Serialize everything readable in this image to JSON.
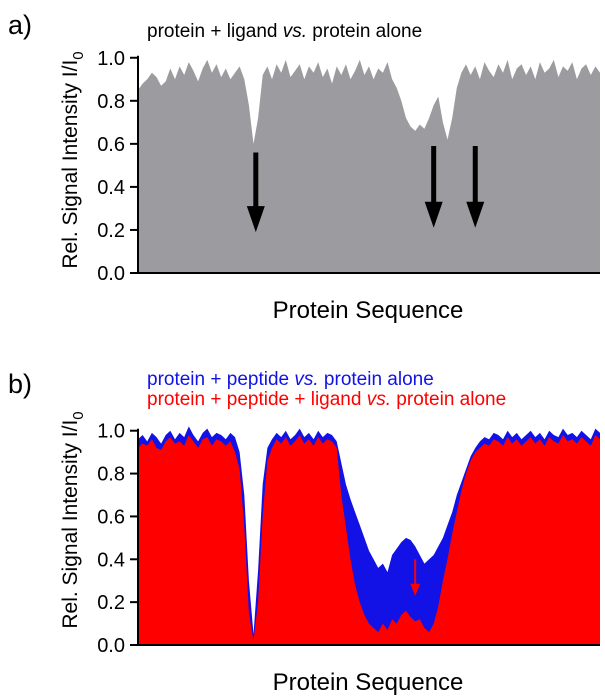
{
  "figure": {
    "panels": [
      "a)",
      "b)"
    ]
  },
  "chart_data": [
    {
      "type": "area",
      "panel_label": "a)",
      "title": "protein + ligand vs. protein alone",
      "title_parts": [
        {
          "text": "protein + ligand ",
          "style": "normal"
        },
        {
          "text": "vs.",
          "style": "italic"
        },
        {
          "text": " protein alone",
          "style": "normal"
        }
      ],
      "xlabel": "Protein Sequence",
      "ylabel": "Rel. Signal Intensity I/I",
      "ylabel_subscript": "0",
      "ylim": [
        0,
        1.05
      ],
      "yticks": [
        0.0,
        0.2,
        0.4,
        0.6,
        0.8,
        1.0
      ],
      "ytick_labels": [
        "0.0",
        "0.2",
        "0.4",
        "0.6",
        "0.8",
        "1.0"
      ],
      "x": [
        0,
        1,
        2,
        3,
        4,
        5,
        6,
        7,
        8,
        9,
        10,
        11,
        12,
        13,
        14,
        15,
        16,
        17,
        18,
        19,
        20,
        21,
        22,
        23,
        24,
        25,
        26,
        27,
        28,
        29,
        30,
        31,
        32,
        33,
        34,
        35,
        36,
        37,
        38,
        39,
        40,
        41,
        42,
        43,
        44,
        45,
        46,
        47,
        48,
        49,
        50,
        51,
        52,
        53,
        54,
        55,
        56,
        57,
        58,
        59,
        60,
        61,
        62,
        63,
        64,
        65,
        66,
        67,
        68,
        69,
        70,
        71,
        72,
        73,
        74,
        75,
        76,
        77,
        78,
        79,
        80,
        81,
        82,
        83,
        84,
        85,
        86,
        87,
        88,
        89,
        90,
        91,
        92,
        93,
        94,
        95,
        96,
        97,
        98,
        99,
        100
      ],
      "series": [
        {
          "name": "protein + ligand vs. protein alone",
          "color": "#9c9ca0",
          "values": [
            0.85,
            0.88,
            0.9,
            0.93,
            0.91,
            0.87,
            0.89,
            0.95,
            0.9,
            0.96,
            0.92,
            0.98,
            0.94,
            0.89,
            0.95,
            0.99,
            0.93,
            0.97,
            0.91,
            0.95,
            0.9,
            0.93,
            0.96,
            0.9,
            0.78,
            0.6,
            0.72,
            0.92,
            0.96,
            0.9,
            0.97,
            0.93,
            0.99,
            0.91,
            0.94,
            0.97,
            0.9,
            0.96,
            0.93,
            0.98,
            0.91,
            0.95,
            0.88,
            0.96,
            0.92,
            0.97,
            0.9,
            0.94,
            0.99,
            0.92,
            0.96,
            0.9,
            0.95,
            0.93,
            0.98,
            0.9,
            0.86,
            0.8,
            0.72,
            0.68,
            0.66,
            0.69,
            0.67,
            0.72,
            0.78,
            0.82,
            0.7,
            0.62,
            0.72,
            0.86,
            0.93,
            0.97,
            0.92,
            0.96,
            0.9,
            0.98,
            0.94,
            0.91,
            0.97,
            0.93,
            0.99,
            0.9,
            0.95,
            0.97,
            0.92,
            0.96,
            0.9,
            0.98,
            0.93,
            0.95,
            0.99,
            0.91,
            0.96,
            0.94,
            0.98,
            0.9,
            0.95,
            0.97,
            0.92,
            0.96,
            0.93
          ]
        }
      ],
      "annotations": [
        {
          "type": "arrow",
          "x": 25.5,
          "y_from": 0.56,
          "y_to": 0.19,
          "color": "#000000"
        },
        {
          "type": "arrow",
          "x": 64,
          "y_from": 0.59,
          "y_to": 0.21,
          "color": "#000000"
        },
        {
          "type": "arrow",
          "x": 73,
          "y_from": 0.59,
          "y_to": 0.21,
          "color": "#000000"
        }
      ]
    },
    {
      "type": "area",
      "panel_label": "b)",
      "title": "protein + peptide vs. protein alone / protein + peptide + ligand vs. protein alone",
      "xlabel": "Protein Sequence",
      "ylabel": "Rel. Signal Intensity I/I",
      "ylabel_subscript": "0",
      "ylim": [
        0,
        1.05
      ],
      "yticks": [
        0.0,
        0.2,
        0.4,
        0.6,
        0.8,
        1.0
      ],
      "ytick_labels": [
        "0.0",
        "0.2",
        "0.4",
        "0.6",
        "0.8",
        "1.0"
      ],
      "legend_position": "top",
      "x": [
        0,
        1,
        2,
        3,
        4,
        5,
        6,
        7,
        8,
        9,
        10,
        11,
        12,
        13,
        14,
        15,
        16,
        17,
        18,
        19,
        20,
        21,
        22,
        23,
        24,
        25,
        26,
        27,
        28,
        29,
        30,
        31,
        32,
        33,
        34,
        35,
        36,
        37,
        38,
        39,
        40,
        41,
        42,
        43,
        44,
        45,
        46,
        47,
        48,
        49,
        50,
        51,
        52,
        53,
        54,
        55,
        56,
        57,
        58,
        59,
        60,
        61,
        62,
        63,
        64,
        65,
        66,
        67,
        68,
        69,
        70,
        71,
        72,
        73,
        74,
        75,
        76,
        77,
        78,
        79,
        80,
        81,
        82,
        83,
        84,
        85,
        86,
        87,
        88,
        89,
        90,
        91,
        92,
        93,
        94,
        95,
        96,
        97,
        98,
        99,
        100
      ],
      "series": [
        {
          "name": "protein + peptide vs. protein alone",
          "label_parts": [
            {
              "text": "protein + peptide ",
              "style": "normal"
            },
            {
              "text": "vs.",
              "style": "italic"
            },
            {
              "text": " protein alone",
              "style": "normal"
            }
          ],
          "color": "#1212e6",
          "values": [
            0.96,
            0.98,
            0.95,
            0.99,
            0.97,
            0.94,
            0.98,
            1.0,
            0.96,
            0.99,
            0.97,
            1.02,
            0.98,
            0.95,
            0.99,
            1.01,
            0.97,
            0.99,
            0.98,
            0.96,
            0.99,
            0.97,
            0.9,
            0.7,
            0.3,
            0.05,
            0.35,
            0.75,
            0.92,
            0.96,
            0.99,
            0.97,
            1.0,
            0.96,
            0.98,
            1.01,
            0.97,
            0.99,
            0.96,
            1.0,
            0.97,
            0.99,
            0.98,
            0.95,
            0.85,
            0.75,
            0.68,
            0.62,
            0.56,
            0.5,
            0.44,
            0.4,
            0.36,
            0.38,
            0.34,
            0.42,
            0.45,
            0.48,
            0.5,
            0.49,
            0.46,
            0.42,
            0.38,
            0.4,
            0.42,
            0.46,
            0.5,
            0.56,
            0.62,
            0.7,
            0.76,
            0.82,
            0.88,
            0.92,
            0.95,
            0.97,
            0.96,
            0.99,
            0.98,
            0.96,
            1.0,
            0.97,
            0.99,
            0.96,
            0.98,
            1.0,
            0.97,
            0.99,
            0.96,
            1.0,
            0.98,
            0.97,
            1.01,
            0.98,
            0.99,
            0.97,
            1.0,
            0.98,
            0.96,
            1.01,
            0.99
          ]
        },
        {
          "name": "protein + peptide + ligand vs. protein alone",
          "label_parts": [
            {
              "text": "protein + peptide + ligand ",
              "style": "normal"
            },
            {
              "text": "vs.",
              "style": "italic"
            },
            {
              "text": " protein alone",
              "style": "normal"
            }
          ],
          "color": "#ff0000",
          "values": [
            0.92,
            0.94,
            0.93,
            0.96,
            0.92,
            0.91,
            0.95,
            0.97,
            0.94,
            0.95,
            0.93,
            0.98,
            0.95,
            0.92,
            0.96,
            0.97,
            0.93,
            0.96,
            0.95,
            0.93,
            0.95,
            0.9,
            0.82,
            0.55,
            0.15,
            0.02,
            0.2,
            0.6,
            0.86,
            0.92,
            0.96,
            0.94,
            0.97,
            0.93,
            0.95,
            0.98,
            0.94,
            0.96,
            0.93,
            0.97,
            0.94,
            0.96,
            0.95,
            0.92,
            0.7,
            0.55,
            0.4,
            0.28,
            0.2,
            0.14,
            0.1,
            0.08,
            0.06,
            0.1,
            0.07,
            0.12,
            0.1,
            0.14,
            0.16,
            0.13,
            0.11,
            0.12,
            0.08,
            0.06,
            0.1,
            0.18,
            0.3,
            0.4,
            0.52,
            0.62,
            0.72,
            0.8,
            0.86,
            0.9,
            0.92,
            0.94,
            0.93,
            0.96,
            0.95,
            0.93,
            0.97,
            0.94,
            0.96,
            0.93,
            0.95,
            0.97,
            0.94,
            0.96,
            0.93,
            0.97,
            0.95,
            0.94,
            0.98,
            0.95,
            0.96,
            0.94,
            0.97,
            0.95,
            0.93,
            0.98,
            0.96
          ]
        }
      ],
      "annotations": [
        {
          "type": "arrow",
          "x": 60,
          "y_from": 0.4,
          "y_to": 0.23,
          "color": "#ff0000"
        }
      ]
    }
  ]
}
